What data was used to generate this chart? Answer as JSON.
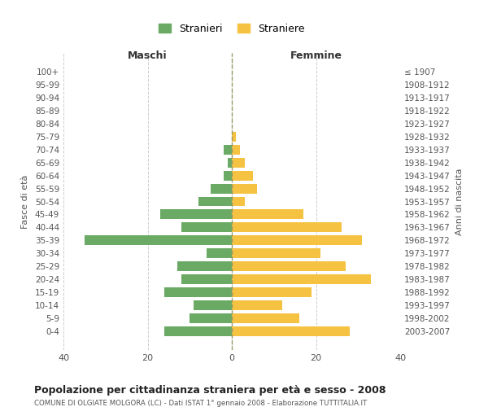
{
  "age_groups": [
    "100+",
    "95-99",
    "90-94",
    "85-89",
    "80-84",
    "75-79",
    "70-74",
    "65-69",
    "60-64",
    "55-59",
    "50-54",
    "45-49",
    "40-44",
    "35-39",
    "30-34",
    "25-29",
    "20-24",
    "15-19",
    "10-14",
    "5-9",
    "0-4"
  ],
  "birth_years": [
    "≤ 1907",
    "1908-1912",
    "1913-1917",
    "1918-1922",
    "1923-1927",
    "1928-1932",
    "1933-1937",
    "1938-1942",
    "1943-1947",
    "1948-1952",
    "1953-1957",
    "1958-1962",
    "1963-1967",
    "1968-1972",
    "1973-1977",
    "1978-1982",
    "1983-1987",
    "1988-1992",
    "1993-1997",
    "1998-2002",
    "2003-2007"
  ],
  "maschi": [
    0,
    0,
    0,
    0,
    0,
    0,
    2,
    1,
    2,
    5,
    8,
    17,
    12,
    35,
    6,
    13,
    12,
    16,
    9,
    10,
    16
  ],
  "femmine": [
    0,
    0,
    0,
    0,
    0,
    1,
    2,
    3,
    5,
    6,
    3,
    17,
    26,
    31,
    21,
    27,
    33,
    19,
    12,
    16,
    28
  ],
  "color_maschi": "#6aaa64",
  "color_femmine": "#f5c242",
  "title": "Popolazione per cittadinanza straniera per età e sesso - 2008",
  "subtitle": "COMUNE DI OLGIATE MOLGORA (LC) - Dati ISTAT 1° gennaio 2008 - Elaborazione TUTTITALIA.IT",
  "xlabel_maschi": "Maschi",
  "xlabel_femmine": "Femmine",
  "ylabel_left": "Fasce di età",
  "ylabel_right": "Anni di nascita",
  "legend_maschi": "Stranieri",
  "legend_femmine": "Straniere",
  "xlim": 40,
  "background_color": "#ffffff",
  "grid_color": "#cccccc"
}
